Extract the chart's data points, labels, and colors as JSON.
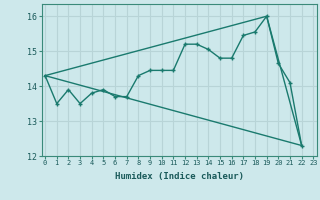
{
  "xlabel": "Humidex (Indice chaleur)",
  "bg_color": "#cde8eb",
  "grid_color": "#b8d4d7",
  "line_color": "#1a7a6e",
  "line1_x": [
    0,
    1,
    2,
    3,
    4,
    5,
    6,
    7,
    8,
    9,
    10,
    11,
    12,
    13,
    14,
    15,
    16,
    17,
    18,
    19,
    20,
    21,
    22
  ],
  "line1_y": [
    14.3,
    13.5,
    13.9,
    13.5,
    13.8,
    13.9,
    13.7,
    13.7,
    14.3,
    14.45,
    14.45,
    14.45,
    15.2,
    15.2,
    15.05,
    14.8,
    14.8,
    15.45,
    15.55,
    16.0,
    14.65,
    14.1,
    12.3
  ],
  "line2_x": [
    0,
    22
  ],
  "line2_y": [
    14.3,
    12.3
  ],
  "line3_x": [
    0,
    19,
    22
  ],
  "line3_y": [
    14.3,
    16.0,
    12.3
  ],
  "ylim": [
    12.0,
    16.35
  ],
  "xlim": [
    -0.3,
    23.3
  ],
  "yticks": [
    12,
    13,
    14,
    15,
    16
  ],
  "xticks": [
    0,
    1,
    2,
    3,
    4,
    5,
    6,
    7,
    8,
    9,
    10,
    11,
    12,
    13,
    14,
    15,
    16,
    17,
    18,
    19,
    20,
    21,
    22,
    23
  ]
}
